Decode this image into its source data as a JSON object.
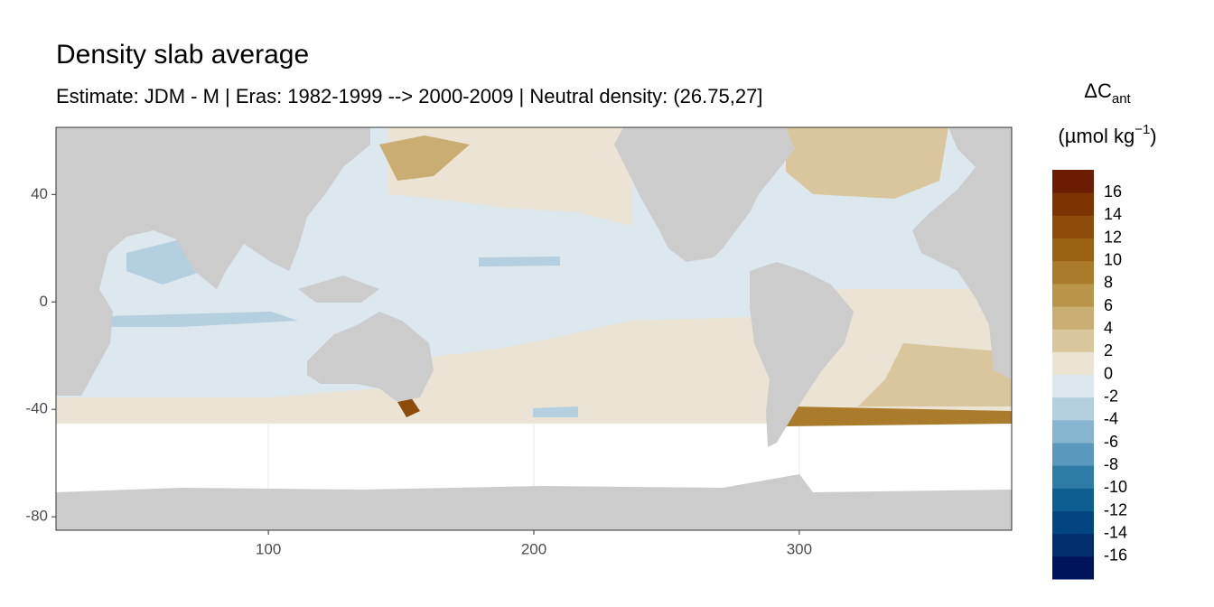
{
  "chart_data": {
    "type": "raster-map",
    "title": "Density slab average",
    "subtitle": "Estimate: JDM - M | Eras: 1982-1999 --> 2000-2009 | Neutral density: (26.75,27]",
    "xlim": [
      20,
      380
    ],
    "xticks": [
      100,
      200,
      300
    ],
    "ylim": [
      -85,
      65
    ],
    "yticks": [
      -80,
      -40,
      0,
      40
    ],
    "grid": true,
    "legend": {
      "title": "ΔC",
      "title_sub": "ant",
      "unit": "(µmol kg",
      "unit_sup": "−1",
      "unit_close": ")",
      "breaks": [
        -16,
        -14,
        -12,
        -10,
        -8,
        -6,
        -4,
        -2,
        0,
        2,
        4,
        6,
        8,
        10,
        12,
        14,
        16
      ],
      "colors": [
        "#00145c",
        "#022e6d",
        "#034580",
        "#0e5e92",
        "#2f7ba8",
        "#5a99bd",
        "#86b5d0",
        "#b3cfe0",
        "#dde7ee",
        "#ebe3d3",
        "#dac69c",
        "#c9ad72",
        "#b99449",
        "#a97b2b",
        "#9a6212",
        "#8c4b08",
        "#7e3303",
        "#6b1c02"
      ]
    }
  }
}
